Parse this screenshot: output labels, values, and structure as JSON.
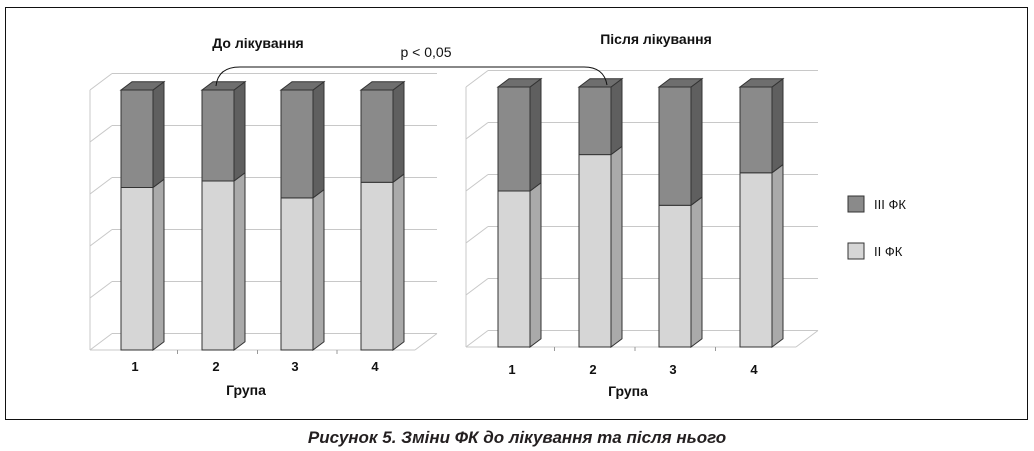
{
  "figure": {
    "caption": "Рисунок 5. Зміни ФК до лікування та після нього",
    "significance_label": "p < 0,05"
  },
  "colors": {
    "iii_fk_front": "#8a8a8a",
    "iii_fk_side": "#5f5f5f",
    "iii_fk_top": "#6e6e6e",
    "ii_fk_front": "#d6d6d6",
    "ii_fk_side": "#aaaaaa",
    "gridline": "#c8c8c8"
  },
  "chart_data": [
    {
      "type": "bar",
      "stacked": true,
      "title": "До лікування",
      "xlabel": "Група",
      "ylabel": "",
      "categories": [
        "1",
        "2",
        "3",
        "4"
      ],
      "series": [
        {
          "name": "II ФК",
          "values": [
            62.5,
            65,
            58.5,
            64.5
          ]
        },
        {
          "name": "III ФК",
          "values": [
            37.5,
            35,
            41.5,
            35.5
          ]
        }
      ],
      "ylim": [
        0,
        100
      ],
      "grid": true
    },
    {
      "type": "bar",
      "stacked": true,
      "title": "Після лікування",
      "xlabel": "Група",
      "ylabel": "",
      "categories": [
        "1",
        "2",
        "3",
        "4"
      ],
      "series": [
        {
          "name": "II ФК",
          "values": [
            60,
            74,
            54.5,
            67
          ]
        },
        {
          "name": "III ФК",
          "values": [
            40,
            26,
            45.5,
            33
          ]
        }
      ],
      "ylim": [
        0,
        100
      ],
      "grid": true
    }
  ],
  "legend": {
    "position": "right",
    "items": [
      {
        "label": "III ФК",
        "series": "III ФК"
      },
      {
        "label": "II ФК",
        "series": "II ФК"
      }
    ]
  }
}
